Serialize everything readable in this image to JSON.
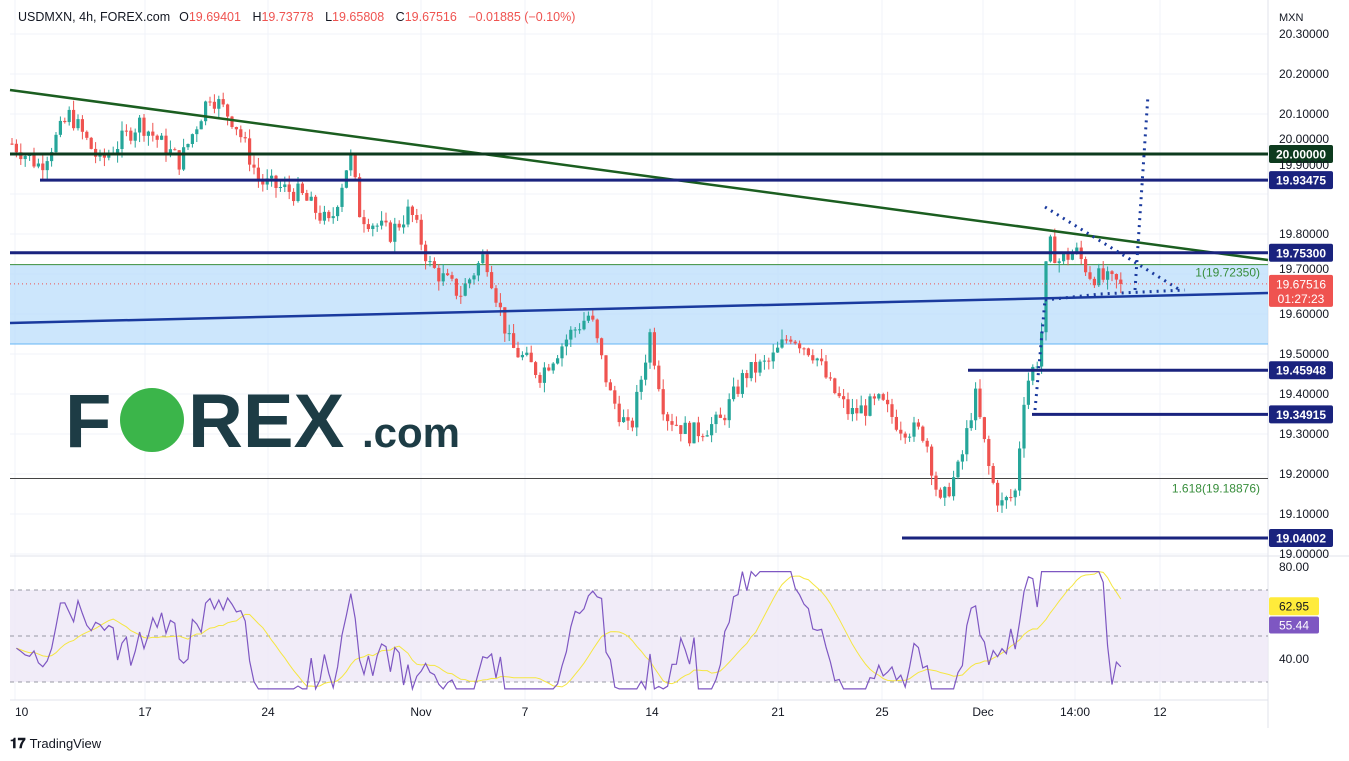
{
  "header": {
    "symbol": "USDMXN, 4h, FOREX.com",
    "open_label": "O",
    "open": "19.69401",
    "high_label": "H",
    "high": "19.73778",
    "low_label": "L",
    "low": "19.65808",
    "close_label": "C",
    "close": "19.67516",
    "change": "−0.01885 (−0.10%)"
  },
  "branding": {
    "footer": "TradingView",
    "watermark": "FOREX.com"
  },
  "colors": {
    "up": "#26a69a",
    "down": "#ef5350",
    "trend_green": "#1b5e20",
    "level_navy": "#1a237e",
    "rsi": "#7e57c2",
    "rsi_ma": "#f5e642",
    "fib_zone": "#bbdefb"
  },
  "chart_data": [
    {
      "type": "candlestick",
      "title": "USDMXN, 4h, FOREX.com",
      "currency_label": "MXN",
      "ylim": [
        19.0,
        20.33
      ],
      "y_ticks": [
        "20.30000",
        "20.20000",
        "20.10000",
        "20.00000",
        "19.90000",
        "19.80000",
        "19.70000",
        "19.60000",
        "19.50000",
        "19.40000",
        "19.30000",
        "19.20000",
        "19.10000",
        "19.00000"
      ],
      "x_ticks": [
        "10",
        "17",
        "24",
        "Nov",
        "7",
        "14",
        "21",
        "25",
        "Dec",
        "14:00",
        "12"
      ],
      "approx_close_path": [
        [
          "Oct 10",
          20.03
        ],
        [
          "Oct 12",
          20.1
        ],
        [
          "Oct 17",
          20.05
        ],
        [
          "Oct 20",
          20.15
        ],
        [
          "Oct 24",
          19.93
        ],
        [
          "Oct 27",
          19.82
        ],
        [
          "Oct 28",
          20.0
        ],
        [
          "Oct 31",
          19.82
        ],
        [
          "Nov 2",
          19.72
        ],
        [
          "Nov 3",
          19.65
        ],
        [
          "Nov 4",
          19.75
        ],
        [
          "Nov 6",
          19.5
        ],
        [
          "Nov 8",
          19.47
        ],
        [
          "Nov 10",
          19.6
        ],
        [
          "Nov 11",
          19.4
        ],
        [
          "Nov 12",
          19.3
        ],
        [
          "Nov 13",
          19.55
        ],
        [
          "Nov 15",
          19.3
        ],
        [
          "Nov 17",
          19.33
        ],
        [
          "Nov 19",
          19.45
        ],
        [
          "Nov 21",
          19.55
        ],
        [
          "Nov 22",
          19.5
        ],
        [
          "Nov 23",
          19.4
        ],
        [
          "Nov 25",
          19.37
        ],
        [
          "Nov 27",
          19.3
        ],
        [
          "Nov 28",
          19.12
        ],
        [
          "Nov 29",
          19.4
        ],
        [
          "Dec 1",
          19.12
        ],
        [
          "Dec 2",
          19.15
        ],
        [
          "Dec 3",
          19.45
        ],
        [
          "Dec 4",
          19.78
        ],
        [
          "Dec 6",
          19.73
        ],
        [
          "Dec 8",
          19.675
        ]
      ],
      "levels": [
        {
          "label": "20.00000",
          "value": 20.0
        },
        {
          "label": "19.93475",
          "value": 19.93475
        },
        {
          "label": "19.75300",
          "value": 19.753
        },
        {
          "label": "19.45948",
          "value": 19.45948
        },
        {
          "label": "19.34915",
          "value": 19.34915
        },
        {
          "label": "19.04002",
          "value": 19.04002
        }
      ],
      "fib": [
        {
          "label": "1(19.72350)",
          "value": 19.7235
        },
        {
          "label": "1.618(19.18876)",
          "value": 19.18876
        }
      ],
      "last_price": {
        "value": "19.67516",
        "countdown": "01:27:23"
      }
    },
    {
      "type": "line",
      "name": "RSI",
      "ylim": [
        25,
        85
      ],
      "y_ticks": [
        "80.00",
        "40.00"
      ],
      "bands": [
        30,
        50,
        70
      ],
      "last": {
        "rsi": "55.44",
        "ma": "62.95"
      }
    }
  ]
}
